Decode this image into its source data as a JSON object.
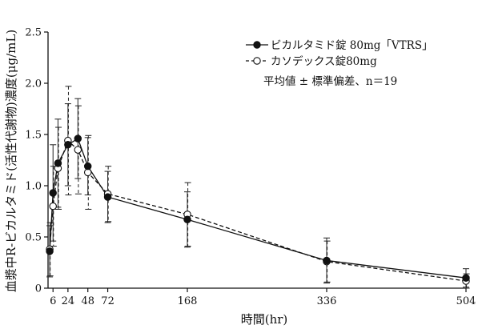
{
  "chart_data": {
    "type": "line",
    "xlabel": "時間(hr)",
    "ylabel": "血漿中R-ビカルタミド(活性代謝物)濃度(μg/mL)",
    "xlim": [
      0,
      504
    ],
    "ylim": [
      0,
      2.5
    ],
    "x_ticks": [
      6,
      24,
      48,
      72,
      168,
      336,
      504
    ],
    "y_ticks": [
      "0",
      "0.5",
      "1.0",
      "1.5",
      "2.0",
      "2.5"
    ],
    "legend": {
      "placement": "top-right",
      "note": "平均値 ± 標準偏差、n＝19"
    },
    "series": [
      {
        "name": "ビカルタミド錠 80mg「VTRS」",
        "marker": "filled-circle",
        "line": "solid",
        "x": [
          2,
          6,
          12,
          24,
          36,
          48,
          72,
          168,
          336,
          504
        ],
        "y": [
          0.36,
          0.93,
          1.22,
          1.4,
          1.46,
          1.19,
          0.89,
          0.67,
          0.27,
          0.1
        ],
        "err": [
          0.25,
          0.47,
          0.43,
          0.4,
          0.39,
          0.28,
          0.25,
          0.27,
          0.22,
          0.09
        ]
      },
      {
        "name": "カソデックス錠80mg",
        "marker": "open-circle",
        "line": "dashed",
        "x": [
          2,
          6,
          12,
          24,
          36,
          48,
          72,
          168,
          336,
          504
        ],
        "y": [
          0.38,
          0.8,
          1.17,
          1.44,
          1.35,
          1.13,
          0.92,
          0.72,
          0.26,
          0.07
        ],
        "err": [
          0.26,
          0.39,
          0.4,
          0.53,
          0.43,
          0.36,
          0.27,
          0.31,
          0.2,
          0.07
        ]
      }
    ]
  }
}
